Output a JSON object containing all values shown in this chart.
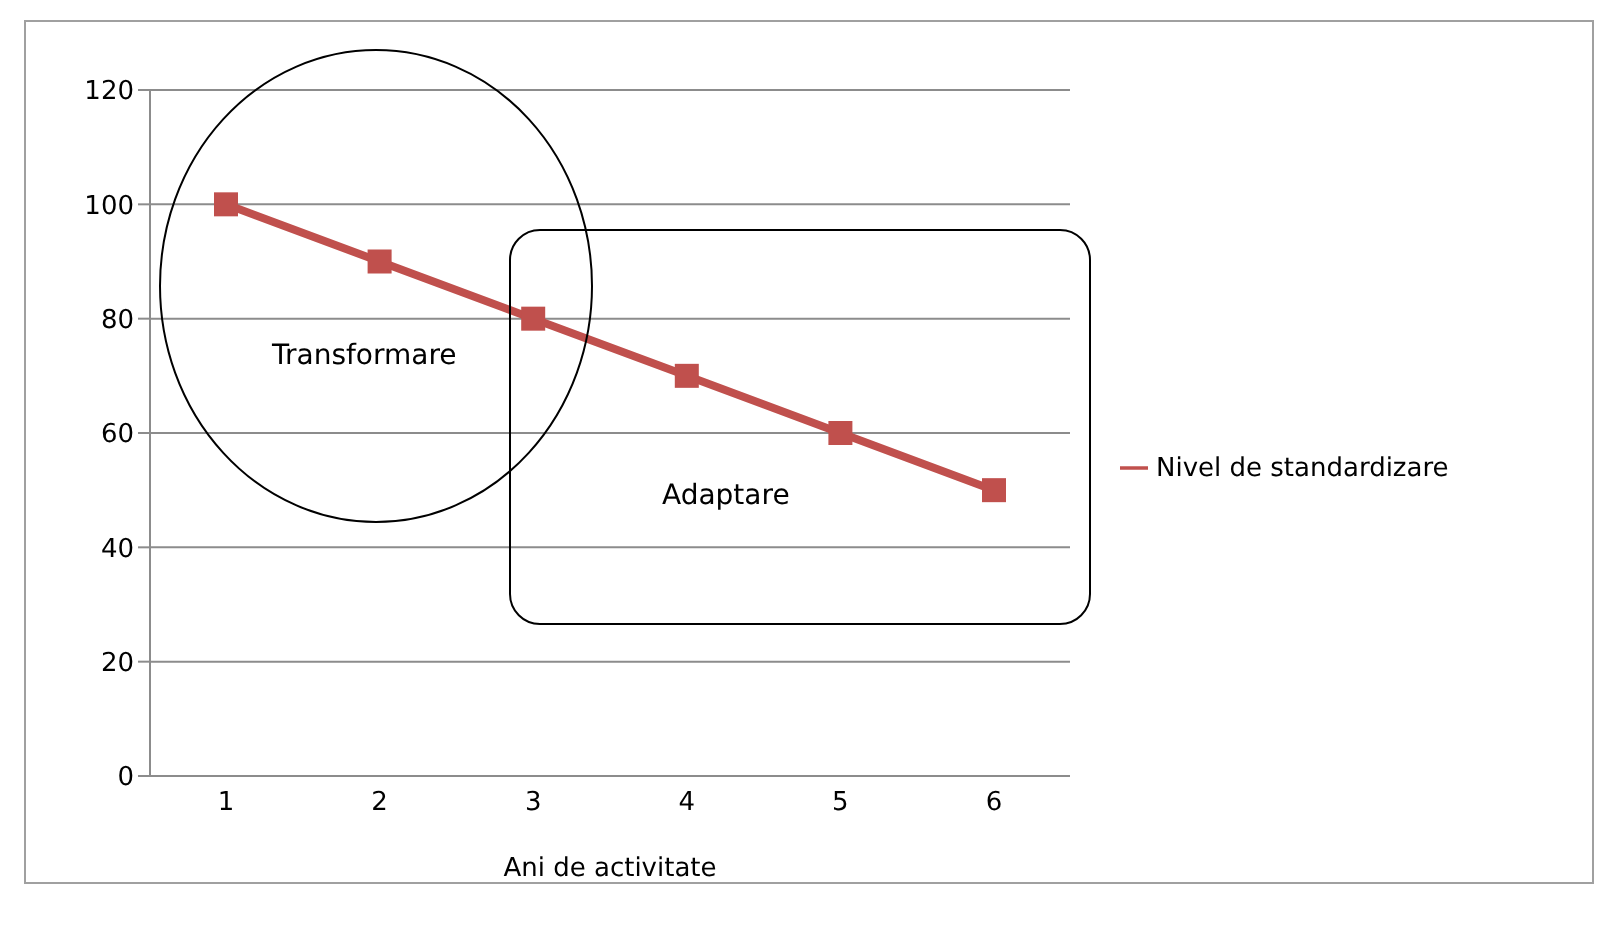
{
  "chart_data": {
    "type": "line",
    "xlabel": "Ani de activitate",
    "categories": [
      "1",
      "2",
      "3",
      "4",
      "5",
      "6"
    ],
    "series": [
      {
        "name": "Nivel de standardizare",
        "color": "#c0504d",
        "values": [
          100,
          90,
          80,
          70,
          60,
          50
        ]
      }
    ],
    "ylim": [
      0,
      120
    ],
    "yticks": [
      0,
      20,
      40,
      60,
      80,
      100,
      120
    ],
    "grid": "y",
    "legend": "right",
    "marker": "square",
    "line_style": "solid",
    "annotations": [
      "Transformare",
      "Adaptare"
    ]
  }
}
